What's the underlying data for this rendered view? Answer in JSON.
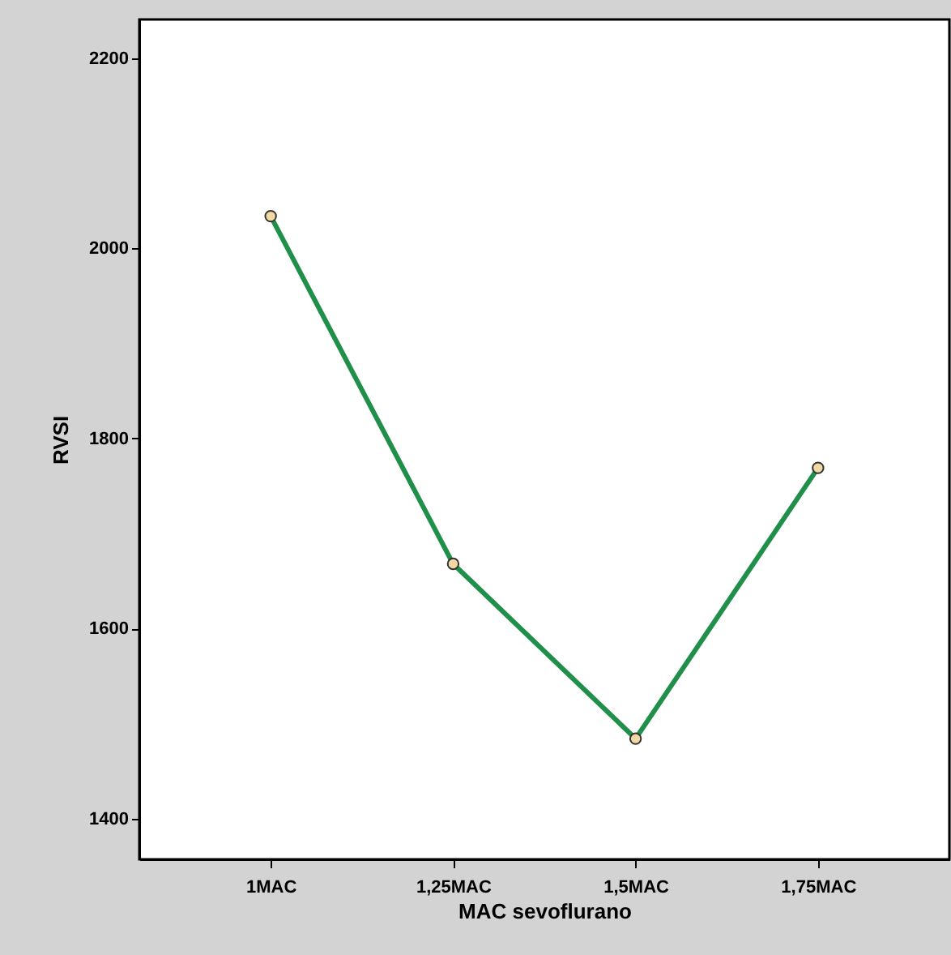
{
  "chart_data": {
    "type": "line",
    "xlabel": "MAC sevoflurano",
    "ylabel": "RVSI",
    "categories": [
      "1MAC",
      "1,25MAC",
      "1,5MAC",
      "1,75MAC"
    ],
    "series": [
      {
        "color": "#1f8f4a",
        "values": [
          2034,
          1668,
          1484,
          1769
        ]
      }
    ],
    "ylim": [
      1357,
      2241
    ],
    "yticks": [
      1400,
      1600,
      1800,
      2000,
      2200
    ],
    "grid": false,
    "marker": "circle",
    "line_style": "solid"
  }
}
